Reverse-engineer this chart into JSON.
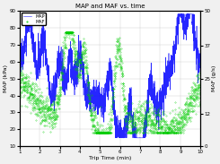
{
  "title": "MAP and MAF vs. time",
  "xlabel": "Trip Time (min)",
  "ylabel_left": "MAP (kPa)",
  "ylabel_right": "MAF (g/s)",
  "xlim": [
    1,
    10
  ],
  "ylim_left": [
    10,
    90
  ],
  "ylim_right": [
    0,
    50
  ],
  "xticks": [
    1,
    2,
    3,
    4,
    5,
    6,
    7,
    8,
    9,
    10
  ],
  "yticks_left": [
    10,
    20,
    30,
    40,
    50,
    60,
    70,
    80,
    90
  ],
  "yticks_right": [
    0,
    12,
    25,
    37,
    50
  ],
  "legend_labels": [
    "MAP",
    "MAF"
  ],
  "legend_colors": [
    "blue",
    "#00cc00"
  ],
  "background_color": "#f0f0f0",
  "plot_bg": "white",
  "seed": 42
}
